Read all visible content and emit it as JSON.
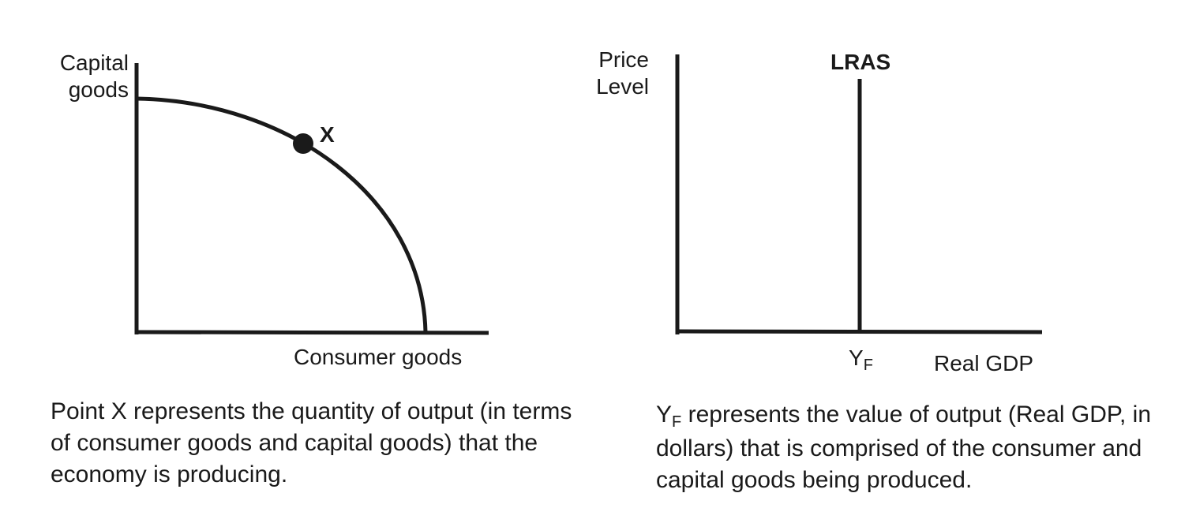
{
  "ppf_diagram": {
    "y_axis_label_line1": "Capital",
    "y_axis_label_line2": "goods",
    "x_axis_label": "Consumer goods",
    "point_label": "X",
    "caption": "Point X represents the quantity of output (in terms of consumer goods and capital goods) that the economy is producing."
  },
  "lras_diagram": {
    "y_axis_label_line1": "Price",
    "y_axis_label_line2": "Level",
    "x_axis_label": "Real GDP",
    "curve_label": "LRAS",
    "tick_label_main": "Y",
    "tick_label_sub": "F",
    "caption_symbol_main": "Y",
    "caption_symbol_sub": "F",
    "caption_rest": "represents the value of output (Real GDP, in dollars) that is comprised of the consumer and capital goods being produced."
  },
  "colors": {
    "ink": "#1a1a1a",
    "background": "#ffffff"
  }
}
